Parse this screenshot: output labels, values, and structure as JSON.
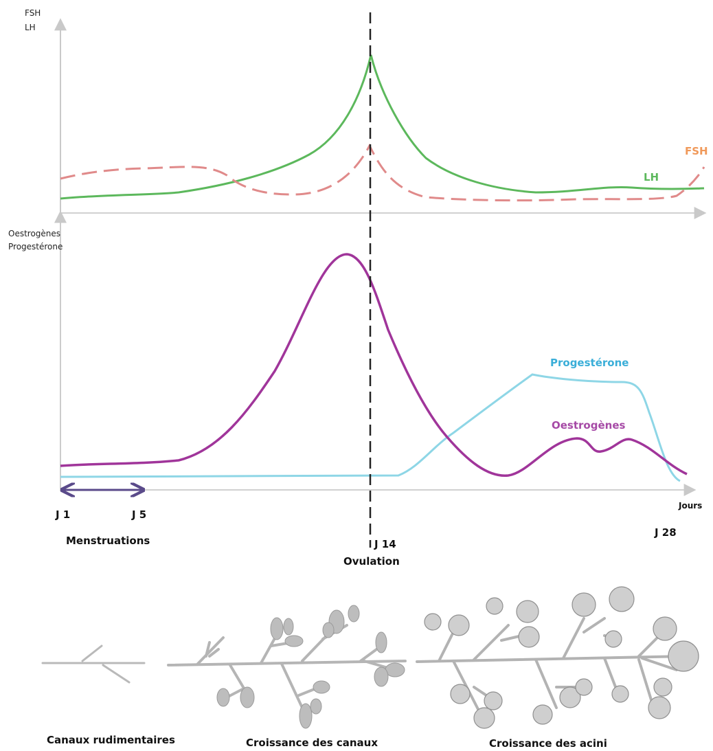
{
  "top_chart": {
    "y_axis_label_1": "FSH",
    "y_axis_label_2": "LH",
    "series": [
      {
        "name": "LH",
        "color": "#5cb85c",
        "style": "solid"
      },
      {
        "name": "FSH",
        "color": "#e08a8a",
        "label_color": "#f0995a",
        "style": "dashed"
      }
    ]
  },
  "bottom_chart": {
    "y_axis_label_1": "Oestrogènes",
    "y_axis_label_2": "Progestérone",
    "x_axis_label": "Jours",
    "series": [
      {
        "name": "Progestérone",
        "color": "#8ed6e6",
        "label_color": "#3aaed8",
        "style": "solid"
      },
      {
        "name": "Oestrogènes",
        "color": "#a0359a",
        "label_color": "#a64aa6",
        "style": "solid"
      }
    ]
  },
  "markers": {
    "day1": "J 1",
    "day5": "J 5",
    "day14": "J 14",
    "day28": "J 28",
    "menstruation": "Menstruations",
    "ovulation": "Ovulation"
  },
  "stages": [
    {
      "label": "Canaux rudimentaires"
    },
    {
      "label": "Croissance des canaux"
    },
    {
      "label": "Croissance des acini"
    }
  ]
}
